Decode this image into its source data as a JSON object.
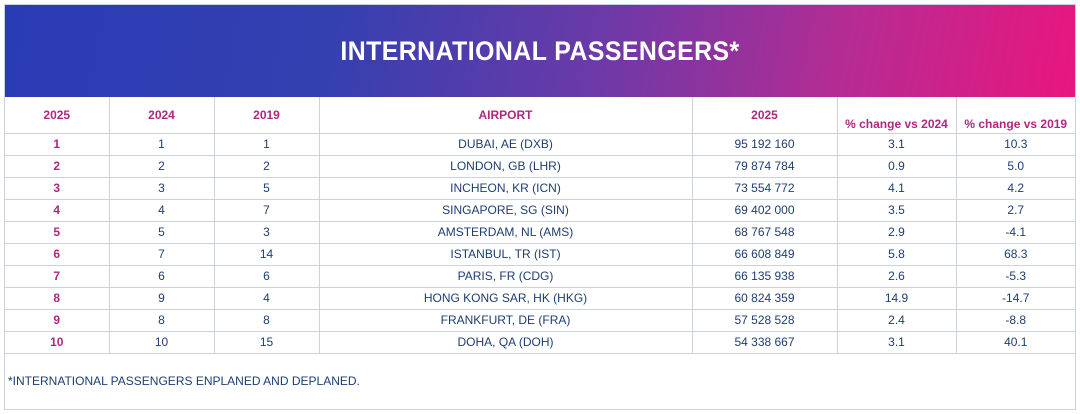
{
  "title": "INTERNATIONAL PASSENGERS*",
  "table": {
    "headers": [
      "2025",
      "2024",
      "2019",
      "AIRPORT",
      "2025",
      "% change vs 2024",
      "% change vs 2019"
    ],
    "rows": [
      [
        "1",
        "1",
        "1",
        "DUBAI, AE (DXB)",
        "95 192 160",
        "3.1",
        "10.3"
      ],
      [
        "2",
        "2",
        "2",
        "LONDON, GB (LHR)",
        "79 874 784",
        "0.9",
        "5.0"
      ],
      [
        "3",
        "3",
        "5",
        "INCHEON, KR (ICN)",
        "73 554 772",
        "4.1",
        "4.2"
      ],
      [
        "4",
        "4",
        "7",
        "SINGAPORE, SG (SIN)",
        "69 402 000",
        "3.5",
        "2.7"
      ],
      [
        "5",
        "5",
        "3",
        "AMSTERDAM, NL (AMS)",
        "68 767 548",
        "2.9",
        "-4.1"
      ],
      [
        "6",
        "7",
        "14",
        "ISTANBUL, TR (IST)",
        "66 608 849",
        "5.8",
        "68.3"
      ],
      [
        "7",
        "6",
        "6",
        "PARIS, FR (CDG)",
        "66 135 938",
        "2.6",
        "-5.3"
      ],
      [
        "8",
        "9",
        "4",
        "HONG KONG SAR, HK (HKG)",
        "60 824 359",
        "14.9",
        "-14.7"
      ],
      [
        "9",
        "8",
        "8",
        "FRANKFURT, DE (FRA)",
        "57 528 528",
        "2.4",
        "-8.8"
      ],
      [
        "10",
        "10",
        "15",
        "DOHA, QA (DOH)",
        "54 338 667",
        "3.1",
        "40.1"
      ]
    ]
  },
  "footnote": "*INTERNATIONAL PASSENGERS ENPLANED AND DEPLANED.",
  "colors": {
    "banner_start": "#2a3bb6",
    "banner_end": "#e8167e",
    "header_text": "#b1277f",
    "body_text": "#1d3e73",
    "grid_line": "#c9d2e3"
  }
}
